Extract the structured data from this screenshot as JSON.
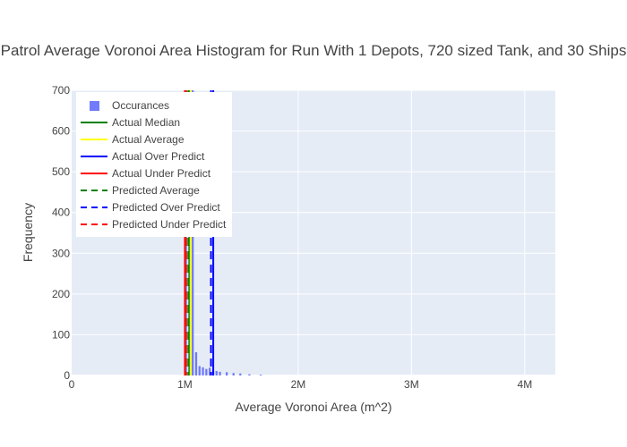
{
  "chart_data": {
    "type": "histogram",
    "title": "Patrol Average Voronoi Area Histogram for Run With 1 Depots, 720 sized Tank, and 30 Ships",
    "xlabel": "Average Voronoi Area (m^2)",
    "ylabel": "Frequency",
    "xlim": [
      0,
      4270000
    ],
    "ylim": [
      0,
      700
    ],
    "x_ticks": [
      0,
      1000000,
      2000000,
      3000000,
      4000000
    ],
    "x_tick_labels": [
      "0",
      "1M",
      "2M",
      "3M",
      "4M"
    ],
    "y_ticks": [
      0,
      100,
      200,
      300,
      400,
      500,
      600,
      700
    ],
    "y_tick_labels": [
      "0",
      "100",
      "200",
      "300",
      "400",
      "500",
      "600",
      "700"
    ],
    "grid": true,
    "legend_position": "top-left",
    "series": [
      {
        "name": "Occurances",
        "kind": "histogram",
        "color": "#636efa",
        "bins": [
          {
            "x": 1000000,
            "y": 700
          },
          {
            "x": 1030000,
            "y": 700
          },
          {
            "x": 1060000,
            "y": 700
          },
          {
            "x": 1090000,
            "y": 57
          },
          {
            "x": 1120000,
            "y": 23
          },
          {
            "x": 1150000,
            "y": 20
          },
          {
            "x": 1180000,
            "y": 16
          },
          {
            "x": 1210000,
            "y": 19
          },
          {
            "x": 1240000,
            "y": 12
          },
          {
            "x": 1270000,
            "y": 11
          },
          {
            "x": 1300000,
            "y": 9
          },
          {
            "x": 1360000,
            "y": 8
          },
          {
            "x": 1420000,
            "y": 6
          },
          {
            "x": 1480000,
            "y": 5
          },
          {
            "x": 1560000,
            "y": 3
          },
          {
            "x": 1660000,
            "y": 2
          }
        ]
      },
      {
        "name": "Actual Median",
        "kind": "vline",
        "x": 1040000,
        "color": "#008000",
        "dash": "solid"
      },
      {
        "name": "Actual Average",
        "kind": "vline",
        "x": 1050000,
        "color": "#ffff00",
        "dash": "solid"
      },
      {
        "name": "Actual Over Predict",
        "kind": "vline",
        "x": 1250000,
        "color": "#0000ff",
        "dash": "solid"
      },
      {
        "name": "Actual Under Predict",
        "kind": "vline",
        "x": 1000000,
        "color": "#ff0000",
        "dash": "solid"
      },
      {
        "name": "Predicted Average",
        "kind": "vline",
        "x": 1030000,
        "color": "#008000",
        "dash": "dash"
      },
      {
        "name": "Predicted Over Predict",
        "kind": "vline",
        "x": 1230000,
        "color": "#0000ff",
        "dash": "dash"
      },
      {
        "name": "Predicted Under Predict",
        "kind": "vline",
        "x": 1010000,
        "color": "#ff0000",
        "dash": "dash"
      }
    ]
  }
}
